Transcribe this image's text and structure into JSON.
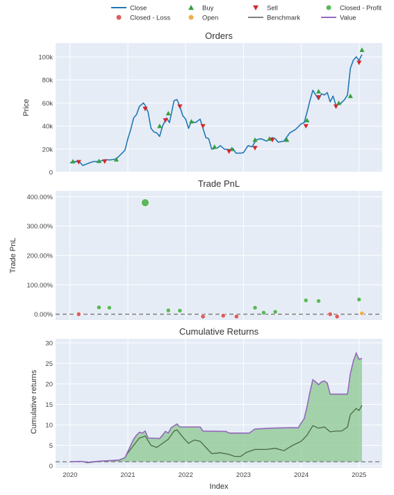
{
  "legend": [
    {
      "label": "Close",
      "symbol": "line",
      "color": "#1f77b4"
    },
    {
      "label": "Closed - Loss",
      "symbol": "circle",
      "color": "#d95f5f"
    },
    {
      "label": "Buy",
      "symbol": "triangle-up",
      "color": "#37a03c"
    },
    {
      "label": "Open",
      "symbol": "circle",
      "color": "#f0ad4e"
    },
    {
      "label": "Sell",
      "symbol": "triangle-down",
      "color": "#d62728"
    },
    {
      "label": "Benchmark",
      "symbol": "line",
      "color": "#7f7f7f"
    },
    {
      "label": "Closed - Profit",
      "symbol": "circle",
      "color": "#5cb85c"
    },
    {
      "label": "Value",
      "symbol": "line",
      "color": "#9467bd"
    }
  ],
  "colors": {
    "plot_bg": "#e5ecf6",
    "close": "#1f77b4",
    "buy": "#37a03c",
    "sell": "#d62728",
    "profit": "#5cb85c",
    "loss": "#d95f5f",
    "open": "#f0ad4e",
    "benchmark": "#4a6a42",
    "value": "#9467bd",
    "fill_profit": "#8cc890"
  },
  "chart_data": [
    {
      "type": "line",
      "title": "Orders",
      "ylabel": "Price",
      "xlim": [
        2019.75,
        2025.4
      ],
      "ylim": [
        0,
        112000
      ],
      "yticks": [
        0,
        20000,
        40000,
        60000,
        80000,
        100000
      ],
      "ytick_labels": [
        "0",
        "20k",
        "40k",
        "60k",
        "80k",
        "100k"
      ],
      "series": [
        {
          "name": "Close",
          "points": [
            [
              2020.0,
              8200
            ],
            [
              2020.08,
              9300
            ],
            [
              2020.17,
              8700
            ],
            [
              2020.22,
              5800
            ],
            [
              2020.3,
              7400
            ],
            [
              2020.4,
              9200
            ],
            [
              2020.5,
              9300
            ],
            [
              2020.6,
              10800
            ],
            [
              2020.7,
              10600
            ],
            [
              2020.8,
              11500
            ],
            [
              2020.88,
              15500
            ],
            [
              2020.95,
              19000
            ],
            [
              2021.0,
              29000
            ],
            [
              2021.05,
              37000
            ],
            [
              2021.1,
              47000
            ],
            [
              2021.15,
              50000
            ],
            [
              2021.2,
              57000
            ],
            [
              2021.27,
              60000
            ],
            [
              2021.3,
              58000
            ],
            [
              2021.35,
              52000
            ],
            [
              2021.4,
              38000
            ],
            [
              2021.45,
              35000
            ],
            [
              2021.5,
              34000
            ],
            [
              2021.55,
              31000
            ],
            [
              2021.6,
              40000
            ],
            [
              2021.67,
              47000
            ],
            [
              2021.72,
              43000
            ],
            [
              2021.8,
              62000
            ],
            [
              2021.85,
              63000
            ],
            [
              2021.9,
              57000
            ],
            [
              2021.95,
              49000
            ],
            [
              2022.0,
              46000
            ],
            [
              2022.05,
              38000
            ],
            [
              2022.1,
              44000
            ],
            [
              2022.17,
              43000
            ],
            [
              2022.25,
              46000
            ],
            [
              2022.3,
              38000
            ],
            [
              2022.35,
              30000
            ],
            [
              2022.4,
              29000
            ],
            [
              2022.45,
              20000
            ],
            [
              2022.55,
              21000
            ],
            [
              2022.6,
              23000
            ],
            [
              2022.67,
              20000
            ],
            [
              2022.75,
              19500
            ],
            [
              2022.82,
              20500
            ],
            [
              2022.87,
              16500
            ],
            [
              2022.95,
              16500
            ],
            [
              2023.0,
              17000
            ],
            [
              2023.08,
              23000
            ],
            [
              2023.15,
              22000
            ],
            [
              2023.22,
              28000
            ],
            [
              2023.3,
              29000
            ],
            [
              2023.4,
              27000
            ],
            [
              2023.5,
              30000
            ],
            [
              2023.55,
              29000
            ],
            [
              2023.6,
              26000
            ],
            [
              2023.7,
              27000
            ],
            [
              2023.8,
              34000
            ],
            [
              2023.9,
              37000
            ],
            [
              2024.0,
              42000
            ],
            [
              2024.05,
              43000
            ],
            [
              2024.1,
              52000
            ],
            [
              2024.15,
              62000
            ],
            [
              2024.2,
              71000
            ],
            [
              2024.25,
              67000
            ],
            [
              2024.3,
              63000
            ],
            [
              2024.35,
              68000
            ],
            [
              2024.4,
              67000
            ],
            [
              2024.45,
              69000
            ],
            [
              2024.5,
              61000
            ],
            [
              2024.55,
              66000
            ],
            [
              2024.6,
              58000
            ],
            [
              2024.67,
              59000
            ],
            [
              2024.75,
              63000
            ],
            [
              2024.8,
              67000
            ],
            [
              2024.85,
              90000
            ],
            [
              2024.9,
              97000
            ],
            [
              2024.95,
              100000
            ],
            [
              2025.0,
              97000
            ],
            [
              2025.05,
              102000
            ]
          ]
        }
      ],
      "markers": {
        "buy": [
          [
            2020.05,
            9300
          ],
          [
            2020.5,
            9600
          ],
          [
            2020.8,
            11000
          ],
          [
            2021.55,
            40000
          ],
          [
            2021.7,
            51000
          ],
          [
            2022.1,
            44000
          ],
          [
            2022.5,
            22000
          ],
          [
            2022.8,
            20000
          ],
          [
            2023.2,
            28000
          ],
          [
            2023.45,
            29000
          ],
          [
            2023.75,
            28000
          ],
          [
            2024.1,
            45000
          ],
          [
            2024.3,
            70000
          ],
          [
            2024.65,
            60000
          ],
          [
            2024.85,
            66000
          ],
          [
            2025.05,
            106000
          ]
        ],
        "sell": [
          [
            2020.15,
            8800
          ],
          [
            2020.6,
            9300
          ],
          [
            2021.3,
            55000
          ],
          [
            2021.65,
            45000
          ],
          [
            2021.9,
            57000
          ],
          [
            2022.3,
            40000
          ],
          [
            2022.75,
            18000
          ],
          [
            2023.2,
            21000
          ],
          [
            2023.5,
            28000
          ],
          [
            2024.08,
            40000
          ],
          [
            2024.3,
            65000
          ],
          [
            2024.6,
            57000
          ],
          [
            2025.0,
            95000
          ]
        ]
      }
    },
    {
      "type": "scatter",
      "title": "Trade PnL",
      "ylabel": "Trade PnL",
      "xlim": [
        2019.75,
        2025.4
      ],
      "ylim": [
        -0.2,
        4.2
      ],
      "yticks": [
        0,
        1,
        2,
        3,
        4
      ],
      "ytick_labels": [
        "0.00%",
        "100.00%",
        "200.00%",
        "300.00%",
        "400.00%"
      ],
      "baseline": 0,
      "points": [
        {
          "x": 2020.15,
          "y": 0.0,
          "kind": "loss"
        },
        {
          "x": 2020.5,
          "y": 0.23,
          "kind": "profit"
        },
        {
          "x": 2020.68,
          "y": 0.22,
          "kind": "profit"
        },
        {
          "x": 2021.3,
          "y": 3.8,
          "kind": "profit",
          "size": "large"
        },
        {
          "x": 2021.7,
          "y": 0.13,
          "kind": "profit"
        },
        {
          "x": 2021.9,
          "y": 0.12,
          "kind": "profit"
        },
        {
          "x": 2022.3,
          "y": -0.08,
          "kind": "loss"
        },
        {
          "x": 2022.65,
          "y": -0.05,
          "kind": "loss"
        },
        {
          "x": 2022.88,
          "y": -0.08,
          "kind": "loss"
        },
        {
          "x": 2023.2,
          "y": 0.22,
          "kind": "profit"
        },
        {
          "x": 2023.35,
          "y": 0.05,
          "kind": "profit"
        },
        {
          "x": 2023.55,
          "y": 0.08,
          "kind": "profit"
        },
        {
          "x": 2024.08,
          "y": 0.47,
          "kind": "profit"
        },
        {
          "x": 2024.3,
          "y": 0.45,
          "kind": "profit"
        },
        {
          "x": 2024.5,
          "y": 0.0,
          "kind": "loss"
        },
        {
          "x": 2024.62,
          "y": -0.08,
          "kind": "loss"
        },
        {
          "x": 2025.0,
          "y": 0.5,
          "kind": "profit"
        },
        {
          "x": 2025.05,
          "y": 0.03,
          "kind": "open"
        }
      ]
    },
    {
      "type": "area",
      "title": "Cumulative Returns",
      "ylabel": "Cumulative returns",
      "xlabel": "Index",
      "xlim": [
        2019.75,
        2025.4
      ],
      "ylim": [
        -0.5,
        31
      ],
      "yticks": [
        0,
        5,
        10,
        15,
        20,
        25,
        30
      ],
      "baseline": 1,
      "x_ticks": [
        2020,
        2021,
        2022,
        2023,
        2024,
        2025
      ],
      "x_tick_labels": [
        "2020",
        "2021",
        "2022",
        "2023",
        "2024",
        "2025"
      ],
      "series": [
        {
          "name": "Value",
          "points": [
            [
              2020.0,
              1.0
            ],
            [
              2020.2,
              1.1
            ],
            [
              2020.3,
              0.85
            ],
            [
              2020.5,
              1.15
            ],
            [
              2020.7,
              1.3
            ],
            [
              2020.85,
              1.4
            ],
            [
              2020.95,
              2.0
            ],
            [
              2021.0,
              3.5
            ],
            [
              2021.05,
              5.0
            ],
            [
              2021.1,
              6.5
            ],
            [
              2021.15,
              7.5
            ],
            [
              2021.2,
              8.2
            ],
            [
              2021.25,
              8.0
            ],
            [
              2021.3,
              8.5
            ],
            [
              2021.35,
              6.8
            ],
            [
              2021.55,
              6.7
            ],
            [
              2021.6,
              7.5
            ],
            [
              2021.65,
              8.4
            ],
            [
              2021.7,
              8.0
            ],
            [
              2021.75,
              9.3
            ],
            [
              2021.85,
              10.2
            ],
            [
              2021.9,
              9.5
            ],
            [
              2022.25,
              9.5
            ],
            [
              2022.3,
              8.5
            ],
            [
              2022.7,
              8.4
            ],
            [
              2022.75,
              8.0
            ],
            [
              2023.1,
              8.0
            ],
            [
              2023.2,
              9.0
            ],
            [
              2023.5,
              9.2
            ],
            [
              2023.8,
              9.3
            ],
            [
              2023.95,
              9.3
            ],
            [
              2024.0,
              10.5
            ],
            [
              2024.05,
              11.5
            ],
            [
              2024.1,
              14.5
            ],
            [
              2024.15,
              18.0
            ],
            [
              2024.2,
              21.0
            ],
            [
              2024.25,
              20.5
            ],
            [
              2024.3,
              19.8
            ],
            [
              2024.35,
              20.5
            ],
            [
              2024.4,
              20.7
            ],
            [
              2024.45,
              20.2
            ],
            [
              2024.5,
              17.5
            ],
            [
              2024.8,
              17.5
            ],
            [
              2024.85,
              22.5
            ],
            [
              2024.9,
              25.5
            ],
            [
              2024.95,
              27.5
            ],
            [
              2025.0,
              26.0
            ],
            [
              2025.05,
              26.2
            ]
          ]
        },
        {
          "name": "Benchmark",
          "points": [
            [
              2020.0,
              1.0
            ],
            [
              2020.2,
              1.1
            ],
            [
              2020.3,
              0.75
            ],
            [
              2020.5,
              1.1
            ],
            [
              2020.7,
              1.3
            ],
            [
              2020.85,
              1.45
            ],
            [
              2020.95,
              2.0
            ],
            [
              2021.0,
              3.2
            ],
            [
              2021.1,
              5.0
            ],
            [
              2021.2,
              6.8
            ],
            [
              2021.25,
              7.0
            ],
            [
              2021.3,
              7.3
            ],
            [
              2021.4,
              5.0
            ],
            [
              2021.5,
              4.5
            ],
            [
              2021.6,
              5.5
            ],
            [
              2021.7,
              6.5
            ],
            [
              2021.8,
              8.5
            ],
            [
              2021.85,
              8.8
            ],
            [
              2021.95,
              7.0
            ],
            [
              2022.05,
              5.5
            ],
            [
              2022.15,
              6.3
            ],
            [
              2022.25,
              6.0
            ],
            [
              2022.35,
              4.5
            ],
            [
              2022.45,
              3.0
            ],
            [
              2022.6,
              3.2
            ],
            [
              2022.75,
              2.8
            ],
            [
              2022.85,
              2.3
            ],
            [
              2022.95,
              2.3
            ],
            [
              2023.05,
              3.3
            ],
            [
              2023.2,
              4.0
            ],
            [
              2023.4,
              4.0
            ],
            [
              2023.55,
              4.3
            ],
            [
              2023.7,
              3.7
            ],
            [
              2023.85,
              5.0
            ],
            [
              2024.0,
              6.0
            ],
            [
              2024.1,
              7.5
            ],
            [
              2024.2,
              9.8
            ],
            [
              2024.3,
              9.2
            ],
            [
              2024.4,
              9.5
            ],
            [
              2024.5,
              8.3
            ],
            [
              2024.6,
              8.5
            ],
            [
              2024.7,
              8.5
            ],
            [
              2024.8,
              9.5
            ],
            [
              2024.85,
              12.5
            ],
            [
              2024.95,
              14.0
            ],
            [
              2025.0,
              13.5
            ],
            [
              2025.05,
              14.8
            ]
          ]
        }
      ]
    }
  ]
}
